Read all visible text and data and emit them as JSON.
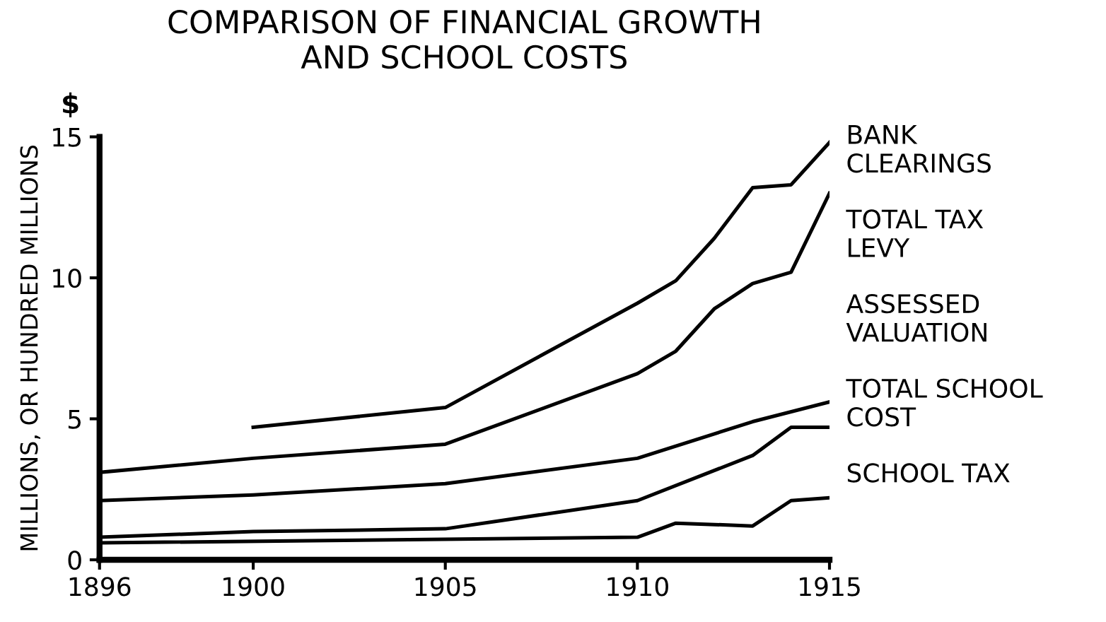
{
  "chart_data": {
    "type": "line",
    "title": "COMPARISON OF FINANCIAL GROWTH\nAND SCHOOL COSTS",
    "ylabel": "MILLIONS, OR HUNDRED MILLIONS",
    "annotations": [
      "$"
    ],
    "xlim": [
      1896,
      1915
    ],
    "xticks": [
      1896,
      1900,
      1905,
      1910,
      1915
    ],
    "ylim": [
      0,
      15
    ],
    "yticks": [
      0,
      5,
      10,
      15
    ],
    "grid": false,
    "legend": false,
    "marker": "none",
    "line_style": "solid",
    "series": [
      {
        "name": "BANK\nCLEARINGS",
        "color": "#000000",
        "x": [
          1900,
          1905,
          1910,
          1911,
          1912,
          1913,
          1914,
          1915
        ],
        "values": [
          4.7,
          5.4,
          9.1,
          9.9,
          11.4,
          13.2,
          13.3,
          14.8
        ]
      },
      {
        "name": "TOTAL TAX\nLEVY",
        "color": "#000000",
        "x": [
          1896,
          1900,
          1905,
          1910,
          1911,
          1912,
          1913,
          1914,
          1915
        ],
        "values": [
          3.1,
          3.6,
          4.1,
          6.6,
          7.4,
          8.9,
          9.8,
          10.2,
          13.0
        ]
      },
      {
        "name": "ASSESSED\nVALUATION",
        "color": "#000000",
        "x": [
          1896,
          1900,
          1905,
          1910,
          1913,
          1915
        ],
        "values": [
          2.1,
          2.3,
          2.7,
          3.6,
          4.9,
          5.6
        ]
      },
      {
        "name": "TOTAL SCHOOL\nCOST",
        "color": "#000000",
        "x": [
          1896,
          1900,
          1905,
          1910,
          1913,
          1914,
          1915
        ],
        "values": [
          0.8,
          1.0,
          1.1,
          2.1,
          3.7,
          4.7,
          4.7
        ]
      },
      {
        "name": "SCHOOL TAX",
        "color": "#000000",
        "x": [
          1896,
          1910,
          1911,
          1913,
          1914,
          1915
        ],
        "values": [
          0.6,
          0.8,
          1.3,
          1.2,
          2.1,
          2.2
        ]
      }
    ]
  }
}
